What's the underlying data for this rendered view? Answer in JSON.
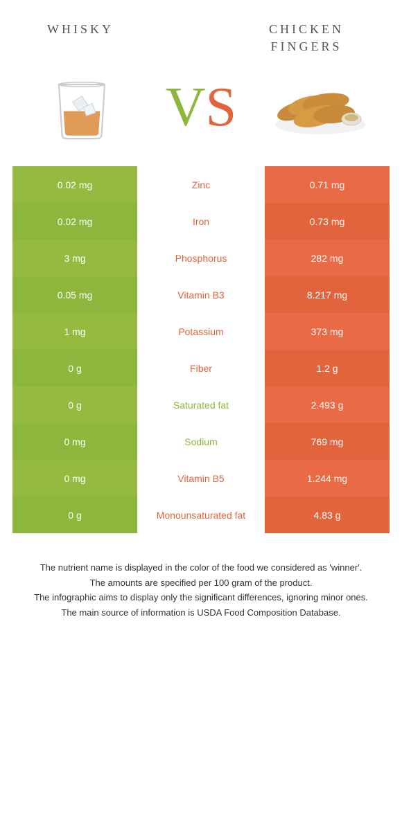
{
  "colors": {
    "left_base": "#94bb3f",
    "left_alt": "#8cb63c",
    "right_base": "#e86b45",
    "right_alt": "#e2643c",
    "mid_winner_left": "#8cb63c",
    "mid_winner_right": "#e2643c",
    "text_white": "#ffffff"
  },
  "titles": {
    "left": "WHISKY",
    "right": "CHICKEN FINGERS"
  },
  "vs": {
    "v": "V",
    "s": "S"
  },
  "rows": [
    {
      "left": "0.02 mg",
      "label": "Zinc",
      "right": "0.71 mg",
      "winner": "right"
    },
    {
      "left": "0.02 mg",
      "label": "Iron",
      "right": "0.73 mg",
      "winner": "right"
    },
    {
      "left": "3 mg",
      "label": "Phosphorus",
      "right": "282 mg",
      "winner": "right"
    },
    {
      "left": "0.05 mg",
      "label": "Vitamin B3",
      "right": "8.217 mg",
      "winner": "right"
    },
    {
      "left": "1 mg",
      "label": "Potassium",
      "right": "373 mg",
      "winner": "right"
    },
    {
      "left": "0 g",
      "label": "Fiber",
      "right": "1.2 g",
      "winner": "right"
    },
    {
      "left": "0 g",
      "label": "Saturated fat",
      "right": "2.493 g",
      "winner": "left"
    },
    {
      "left": "0 mg",
      "label": "Sodium",
      "right": "769 mg",
      "winner": "left"
    },
    {
      "left": "0 mg",
      "label": "Vitamin B5",
      "right": "1.244 mg",
      "winner": "right"
    },
    {
      "left": "0 g",
      "label": "Monounsaturated fat",
      "right": "4.83 g",
      "winner": "right"
    }
  ],
  "footer": [
    "The nutrient name is displayed in the color of the food we considered as 'winner'.",
    "The amounts are specified per 100 gram of the product.",
    "The infographic aims to display only the significant differences, ignoring minor ones.",
    "The main source of information is USDA Food Composition Database."
  ]
}
